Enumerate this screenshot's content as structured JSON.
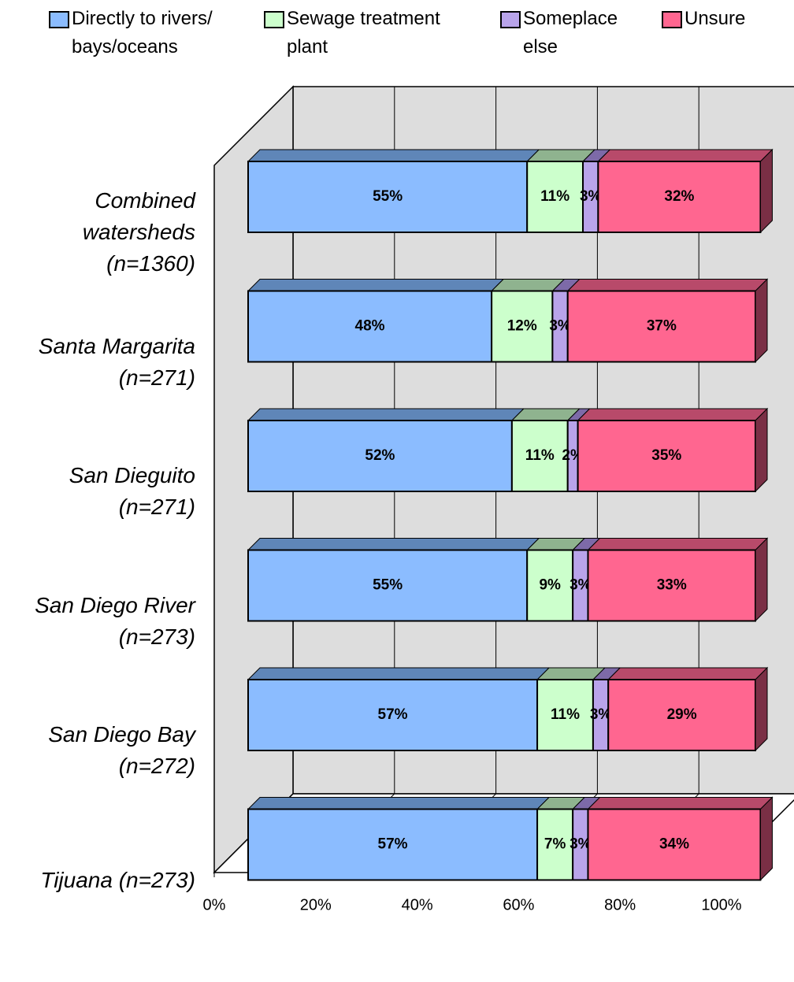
{
  "chart_data": {
    "type": "bar3d_stacked_horizontal",
    "categories": [
      "Combined watersheds (n=1360)",
      "Santa Margarita (n=271)",
      "San Dieguito (n=271)",
      "San Diego River (n=273)",
      "San Diego Bay (n=272)",
      "Tijuana (n=273)"
    ],
    "series": [
      {
        "name": "Directly to rivers/ bays/oceans",
        "color": "#8bbcff",
        "top_color": "#5f86b8",
        "values": [
          55,
          48,
          52,
          55,
          57,
          57
        ],
        "value_labels": [
          "55%",
          "48%",
          "52%",
          "55%",
          "57%",
          "57%"
        ]
      },
      {
        "name": "Sewage treatment plant",
        "color": "#ccffcc",
        "top_color": "#8fb38f",
        "values": [
          11,
          12,
          11,
          9,
          11,
          7
        ],
        "value_labels": [
          "11%",
          "12%",
          "11%",
          "9%",
          "11%",
          "7%"
        ]
      },
      {
        "name": "Someplace else",
        "color": "#b9a4ea",
        "top_color": "#7d6aa8",
        "values": [
          3,
          3,
          2,
          3,
          3,
          3
        ],
        "value_labels": [
          "3%",
          "3%",
          "2%",
          "3%",
          "3%",
          "3%"
        ]
      },
      {
        "name": "Unsure",
        "color": "#ff6690",
        "top_color": "#b84a6a",
        "values": [
          32,
          37,
          35,
          33,
          29,
          34
        ],
        "value_labels": [
          "32%",
          "37%",
          "35%",
          "33%",
          "29%",
          "34%"
        ]
      }
    ],
    "xlim": [
      0,
      100
    ],
    "xticks": [
      {
        "value": 0,
        "label": "0%"
      },
      {
        "value": 20,
        "label": "20%"
      },
      {
        "value": 40,
        "label": "40%"
      },
      {
        "value": 60,
        "label": "60%"
      },
      {
        "value": 80,
        "label": "80%"
      },
      {
        "value": 100,
        "label": "100%"
      }
    ],
    "grid": true,
    "legend": "top"
  }
}
